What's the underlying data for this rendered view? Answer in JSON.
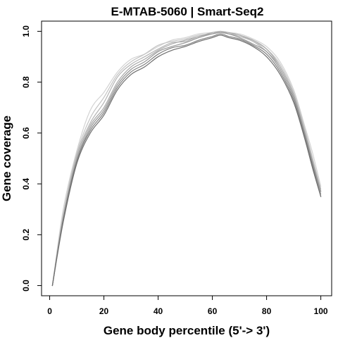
{
  "chart_data": {
    "type": "line",
    "title": "E-MTAB-5060 | Smart-Seq2",
    "xlabel": "Gene body percentile (5'-> 3')",
    "ylabel": "Gene coverage",
    "xlim": [
      -3,
      104
    ],
    "ylim": [
      -0.04,
      1.04
    ],
    "xticks": [
      0,
      20,
      40,
      60,
      80,
      100
    ],
    "yticks": [
      0.0,
      0.2,
      0.4,
      0.6,
      0.8,
      1.0
    ],
    "xtick_labels": [
      "0",
      "20",
      "40",
      "60",
      "80",
      "100"
    ],
    "ytick_labels": [
      "0.0",
      "0.2",
      "0.4",
      "0.6",
      "0.8",
      "1.0"
    ],
    "grid": false,
    "legend": "none",
    "x": [
      1,
      5,
      10,
      15,
      20,
      25,
      30,
      35,
      40,
      45,
      50,
      55,
      60,
      63,
      66,
      70,
      75,
      80,
      85,
      90,
      94,
      97,
      100
    ],
    "series": [
      {
        "color": "#d3d3d3",
        "values": [
          0.0,
          0.3,
          0.53,
          0.69,
          0.76,
          0.84,
          0.89,
          0.91,
          0.94,
          0.965,
          0.975,
          0.99,
          0.995,
          1.0,
          0.995,
          0.99,
          0.97,
          0.94,
          0.88,
          0.77,
          0.63,
          0.52,
          0.39
        ]
      },
      {
        "color": "#c4c4c4",
        "values": [
          0.0,
          0.28,
          0.52,
          0.66,
          0.74,
          0.83,
          0.88,
          0.91,
          0.945,
          0.96,
          0.97,
          0.985,
          0.99,
          1.0,
          0.99,
          0.985,
          0.96,
          0.93,
          0.87,
          0.76,
          0.62,
          0.5,
          0.38
        ]
      },
      {
        "color": "#b4b4b4",
        "values": [
          0.0,
          0.27,
          0.51,
          0.64,
          0.72,
          0.82,
          0.87,
          0.9,
          0.93,
          0.955,
          0.96,
          0.98,
          0.99,
          0.995,
          0.99,
          0.98,
          0.96,
          0.92,
          0.86,
          0.75,
          0.61,
          0.49,
          0.37
        ]
      },
      {
        "color": "#a9a9a9",
        "values": [
          0.0,
          0.27,
          0.5,
          0.63,
          0.7,
          0.8,
          0.86,
          0.89,
          0.925,
          0.95,
          0.965,
          0.98,
          0.995,
          1.0,
          0.995,
          0.985,
          0.965,
          0.93,
          0.86,
          0.75,
          0.6,
          0.48,
          0.36
        ]
      },
      {
        "color": "#969696",
        "values": [
          0.0,
          0.26,
          0.49,
          0.62,
          0.69,
          0.79,
          0.85,
          0.88,
          0.92,
          0.94,
          0.955,
          0.975,
          0.99,
          0.995,
          0.99,
          0.975,
          0.95,
          0.92,
          0.85,
          0.74,
          0.6,
          0.48,
          0.37
        ]
      },
      {
        "color": "#808080",
        "values": [
          0.0,
          0.26,
          0.49,
          0.61,
          0.68,
          0.78,
          0.84,
          0.87,
          0.91,
          0.935,
          0.945,
          0.965,
          0.98,
          0.99,
          0.98,
          0.97,
          0.945,
          0.91,
          0.84,
          0.73,
          0.59,
          0.47,
          0.35
        ]
      },
      {
        "color": "#6e6e6e",
        "values": [
          0.0,
          0.25,
          0.48,
          0.6,
          0.67,
          0.77,
          0.83,
          0.86,
          0.9,
          0.925,
          0.94,
          0.96,
          0.975,
          0.985,
          0.975,
          0.965,
          0.94,
          0.9,
          0.83,
          0.72,
          0.58,
          0.46,
          0.35
        ]
      }
    ]
  }
}
